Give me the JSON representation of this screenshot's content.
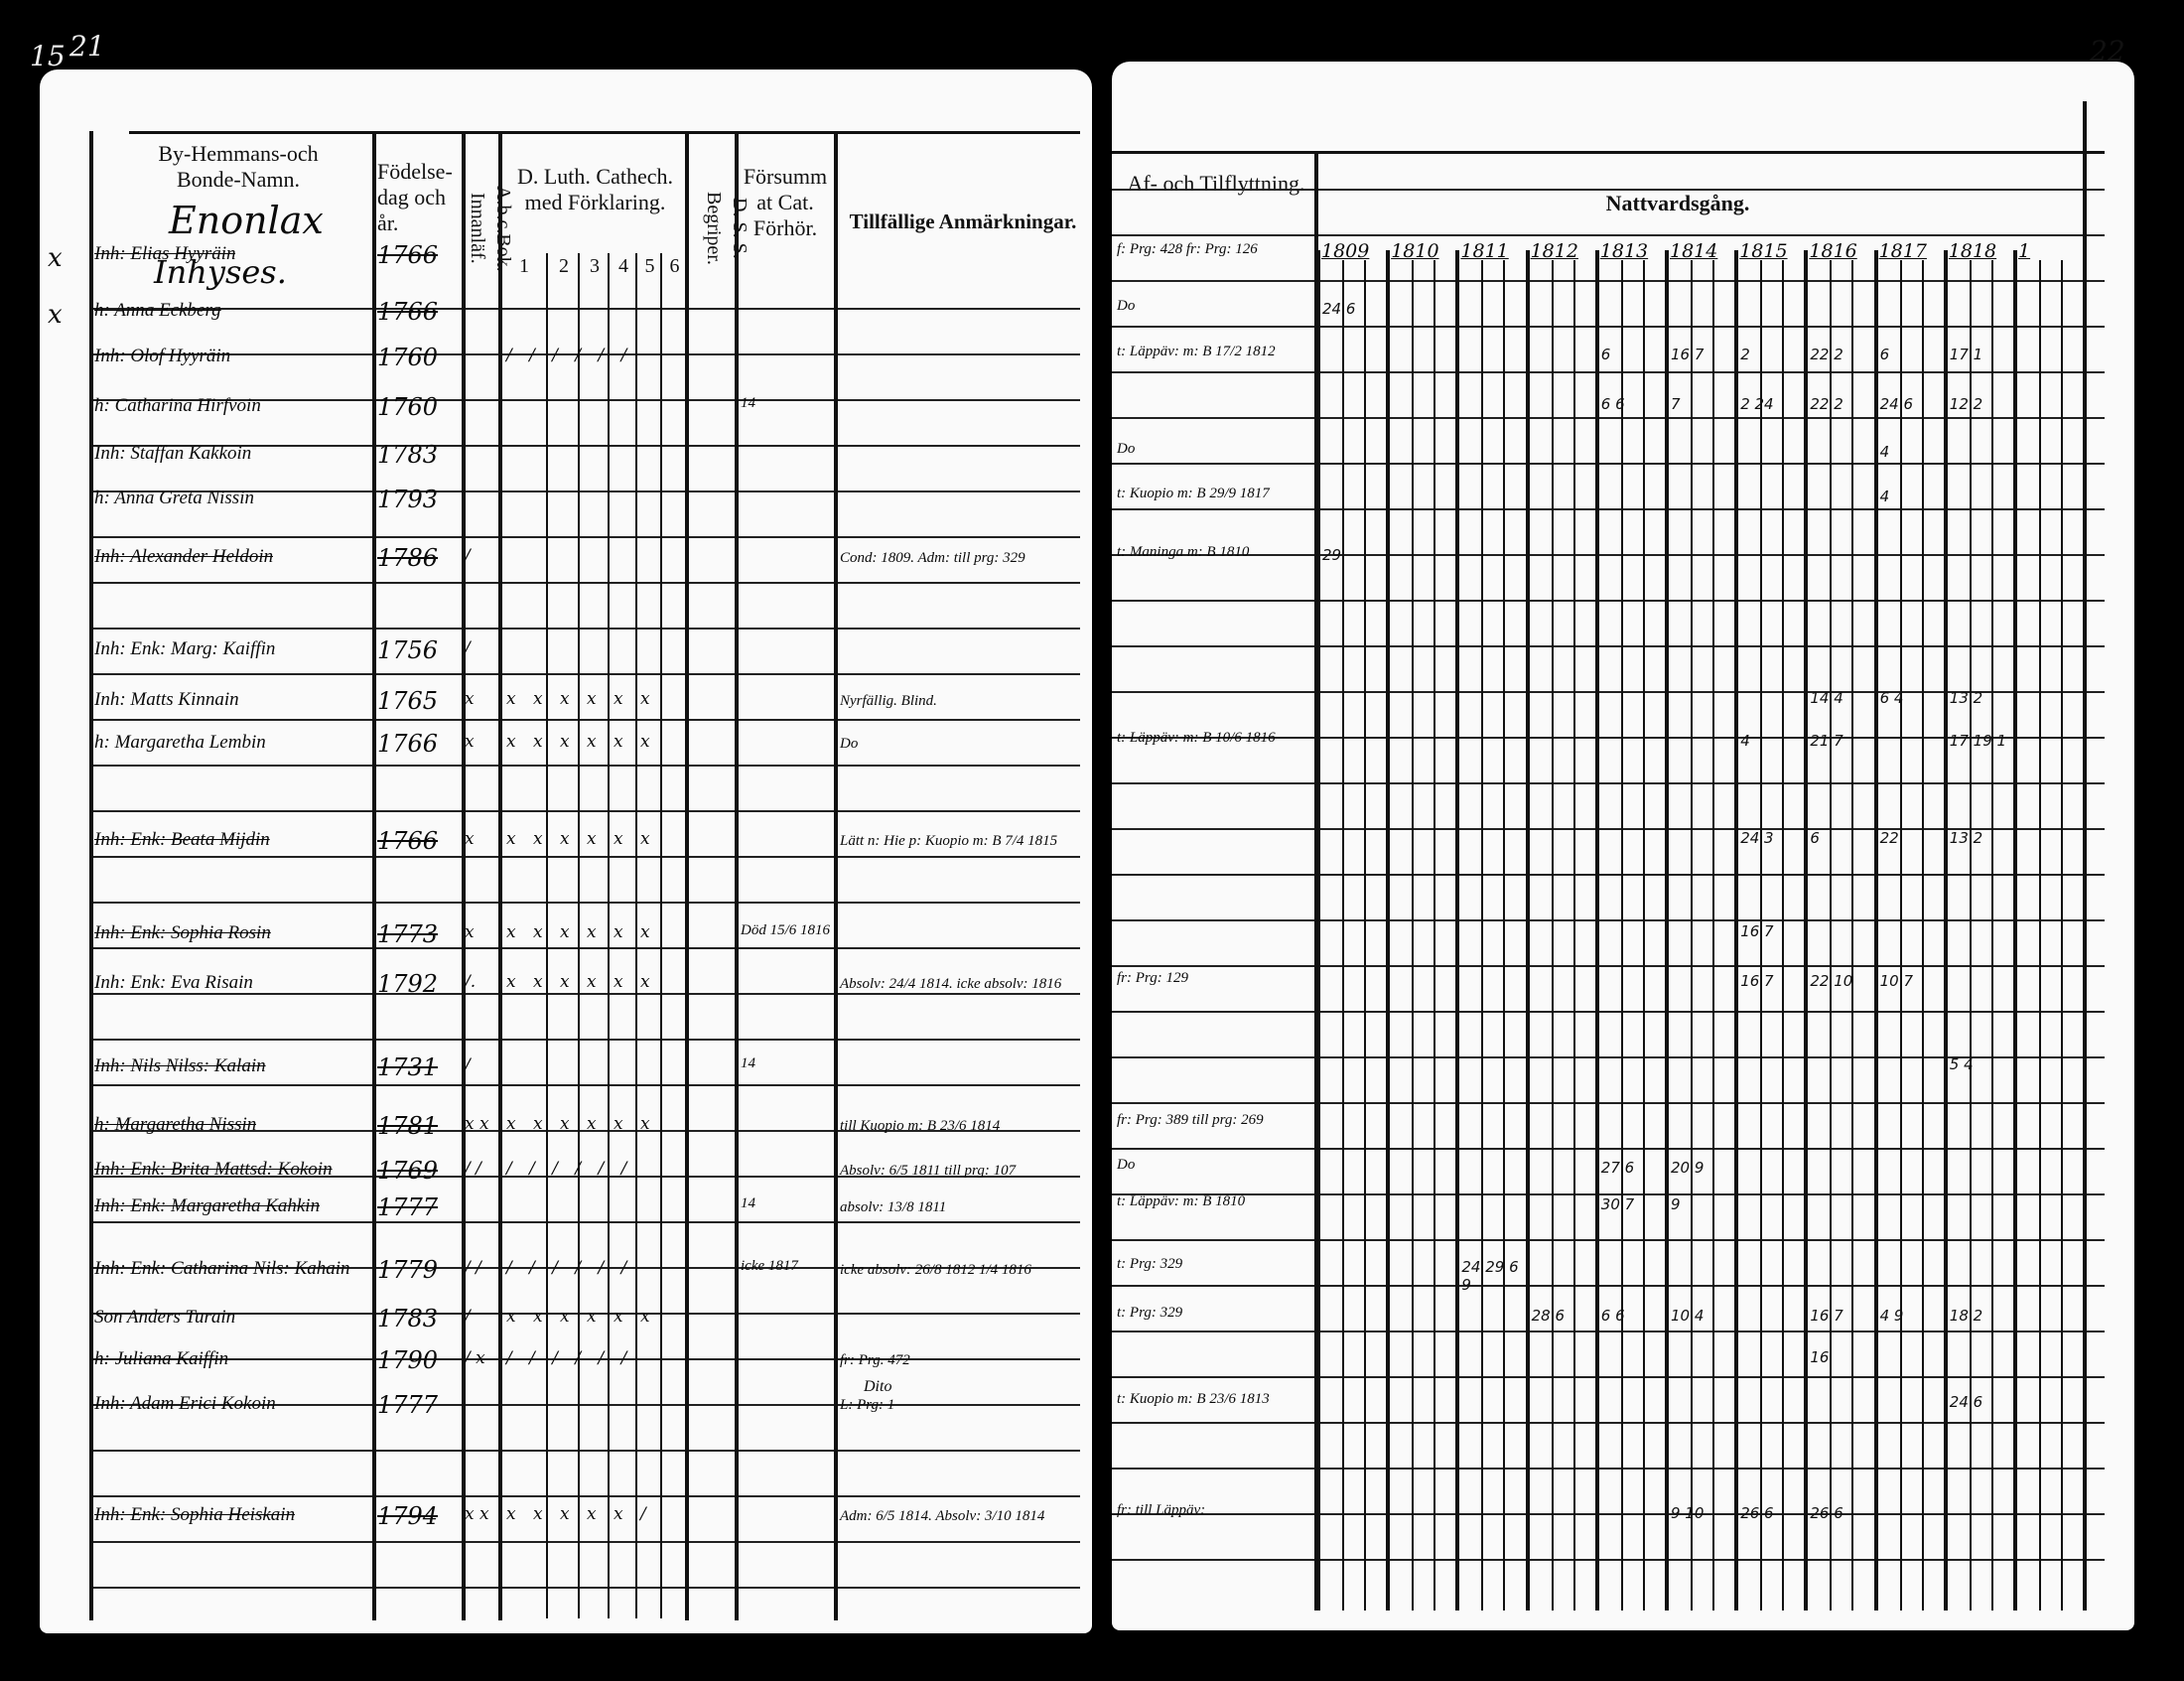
{
  "page_numbers": {
    "left_outer": "15",
    "left": "21",
    "right": "22"
  },
  "left_page": {
    "headers": {
      "name": "By-Hemmans-och Bonde-Namn.",
      "village": "Enonlax",
      "section": "Inhyses.",
      "birth": "Födelse-dag och år.",
      "abc": "A.b.c.Bok. Innanläf.",
      "catechism": "D. Luth. Cathech. med Förklaring.",
      "catechism_parts": [
        "1",
        "2",
        "3",
        "4",
        "5",
        "6"
      ],
      "dss": "D. S. S. Begriper.",
      "neglected": "Försummat Cat. Förhör.",
      "remarks": "Tillfällige Anmärkningar."
    },
    "rows": [
      {
        "name": "Inh: Elias Hyyräin",
        "year": "1766",
        "struck": true,
        "mark": "x",
        "abc": "",
        "cat": "",
        "dss": "",
        "remark": ""
      },
      {
        "name": "h: Anna Eckberg",
        "year": "1766",
        "struck": true,
        "mark": "x",
        "abc": "",
        "cat": "",
        "dss": "",
        "remark": ""
      },
      {
        "name": "Inh: Olof Hyyräin",
        "year": "1760",
        "struck": false,
        "mark": "",
        "abc": "",
        "cat": "/ / / / / /",
        "dss": "",
        "remark": ""
      },
      {
        "name": "h: Catharina Hirfvoin",
        "year": "1760",
        "struck": false,
        "mark": "",
        "abc": "",
        "cat": "",
        "dss": "14",
        "remark": ""
      },
      {
        "name": "Inh: Staffan Kakkoin",
        "year": "1783",
        "struck": false,
        "mark": "",
        "abc": "",
        "cat": "",
        "dss": "",
        "remark": ""
      },
      {
        "name": "h: Anna Greta Nissin",
        "year": "1793",
        "struck": false,
        "mark": "",
        "abc": "",
        "cat": "",
        "dss": "",
        "remark": ""
      },
      {
        "name": "Inh: Alexander Heldoin",
        "year": "1786",
        "struck": true,
        "mark": "",
        "abc": "/",
        "cat": "",
        "dss": "",
        "remark": "Cond: 1809. Adm: till prg: 329"
      },
      {
        "name": "Inh: Enk: Marg: Kaiffin",
        "year": "1756",
        "struck": false,
        "mark": "",
        "abc": "/",
        "cat": "",
        "dss": "",
        "remark": ""
      },
      {
        "name": "Inh: Matts Kinnain",
        "year": "1765",
        "struck": false,
        "mark": "",
        "abc": "x",
        "cat": "x x x x x x",
        "dss": "",
        "remark": "Nyrfällig. Blind."
      },
      {
        "name": "h: Margaretha Lembin",
        "year": "1766",
        "struck": false,
        "mark": "",
        "abc": "x",
        "cat": "x x x x x x",
        "dss": "",
        "remark": "Do"
      },
      {
        "name": "Inh: Enk: Beata Mijdin",
        "year": "1766",
        "struck": true,
        "mark": "",
        "abc": "x",
        "cat": "x x x x x x",
        "dss": "",
        "remark": "Lätt n: Hie p: Kuopio m: B 7/4 1815"
      },
      {
        "name": "Inh: Enk: Sophia Rosin",
        "year": "1773",
        "struck": true,
        "mark": "",
        "abc": "x",
        "cat": "x x x x x x",
        "dss": "Död 15/6 1816",
        "remark": ""
      },
      {
        "name": "Inh: Enk: Eva Risain",
        "year": "1792",
        "struck": false,
        "mark": "",
        "abc": "/.",
        "cat": "x x x x x x",
        "dss": "",
        "remark": "Absolv: 24/4 1814. icke absolv: 1816"
      },
      {
        "name": "Inh: Nils Nilss: Kalain",
        "year": "1731",
        "struck": true,
        "mark": "",
        "abc": "/",
        "cat": "",
        "dss": "14",
        "remark": ""
      },
      {
        "name": "h: Margaretha Nissin",
        "year": "1781",
        "struck": true,
        "mark": "",
        "abc": "x x",
        "cat": "x x x x x x",
        "dss": "",
        "remark": "till Kuopio m: B 23/6 1814"
      },
      {
        "name": "Inh: Enk: Brita Mattsd: Kokoin",
        "year": "1769",
        "struck": true,
        "mark": "",
        "abc": "/ /",
        "cat": "/ / / / / /",
        "dss": "",
        "remark": "Absolv: 6/5 1811 till prg: 107"
      },
      {
        "name": "Inh: Enk: Margaretha Kahkin",
        "year": "1777",
        "struck": true,
        "mark": "",
        "abc": "",
        "cat": "",
        "dss": "14",
        "remark": "absolv: 13/8 1811"
      },
      {
        "name": "Inh: Enk: Catharina Nils: Kahain",
        "year": "1779",
        "struck": false,
        "mark": "",
        "abc": "/ /",
        "cat": "/ / / / / /",
        "dss": "icke 1817",
        "remark": "icke absolv: 26/8 1812 1/4 1816"
      },
      {
        "name": "Son Anders Turain",
        "year": "1783",
        "struck": false,
        "mark": "",
        "abc": "/",
        "cat": "x x x x x x",
        "dss": "",
        "remark": ""
      },
      {
        "name": "h: Juliana Kaiffin",
        "year": "1790",
        "struck": false,
        "mark": "",
        "abc": "/ x",
        "cat": "/ / / / / /",
        "dss": "",
        "remark": "fr: Prg. 472"
      },
      {
        "name": "Inh: Adam Erici Kokoin",
        "year": "1777",
        "struck": false,
        "mark": "",
        "abc": "",
        "cat": "",
        "dss": "",
        "remark": "L: Prg: 1"
      },
      {
        "name": "Inh: Enk: Sophia Heiskain",
        "year": "1794",
        "struck": true,
        "mark": "",
        "abc": "x x",
        "cat": "x x x x x /",
        "dss": "",
        "remark": "Adm: 6/5 1814. Absolv: 3/10 1814"
      }
    ],
    "extra_remark": "Dito"
  },
  "right_page": {
    "headers": {
      "moves": "Af- och Tilflyttning.",
      "communion": "Nattvardsgång."
    },
    "years": [
      "1809",
      "1810",
      "1811",
      "1812",
      "1813",
      "1814",
      "1815",
      "1816",
      "1817",
      "1818",
      "1"
    ],
    "moves": [
      "f: Prg: 428 fr: Prg: 126",
      "Do",
      "t: Läppäv: m: B 17/2 1812",
      "",
      "Do",
      "t: Kuopio m: B 29/9 1817",
      "t: Maninga m: B 1810",
      "",
      "",
      "t: Läppäv: m: B 10/6 1816",
      "",
      "",
      "fr: Prg: 129",
      "",
      "fr: Prg: 389 till prg: 269",
      "Do",
      "t: Läppäv: m: B 1810",
      "t: Prg: 329",
      "t: Prg: 329",
      "",
      "t: Kuopio m: B 23/6 1813",
      "fr: till Läppäv:"
    ],
    "communion": [
      [],
      [
        [
          "1809",
          "24 6"
        ]
      ],
      [
        [
          "1813",
          "6"
        ],
        [
          "1814",
          "16 7"
        ],
        [
          "1815",
          "2"
        ],
        [
          "1816",
          "22 2"
        ],
        [
          "1817",
          "6"
        ],
        [
          "1818",
          "17 1"
        ]
      ],
      [
        [
          "1813",
          "6 6"
        ],
        [
          "1814",
          "7"
        ],
        [
          "1815",
          "2 24"
        ],
        [
          "1816",
          "22 2"
        ],
        [
          "1817",
          "24 6"
        ],
        [
          "1818",
          "12 2"
        ]
      ],
      [
        [
          "1817",
          "4"
        ]
      ],
      [
        [
          "1817",
          "4"
        ]
      ],
      [
        [
          "1809",
          "29"
        ]
      ],
      [],
      [
        [
          "1816",
          "14 4"
        ],
        [
          "1817",
          "6 4"
        ],
        [
          "1818",
          "13 2"
        ]
      ],
      [
        [
          "1815",
          "4"
        ],
        [
          "1816",
          "21 7"
        ],
        [
          "1818",
          "17 19 1"
        ]
      ],
      [
        [
          "1815",
          "24 3"
        ],
        [
          "1816",
          "6"
        ],
        [
          "1817",
          "22"
        ],
        [
          "1818",
          "13 2"
        ]
      ],
      [
        [
          "1815",
          "16 7"
        ]
      ],
      [
        [
          "1815",
          "16 7"
        ],
        [
          "1816",
          "22 10"
        ],
        [
          "1817",
          "10 7"
        ]
      ],
      [
        [
          "1818",
          "5 4"
        ]
      ],
      [],
      [
        [
          "1813",
          "27 6"
        ],
        [
          "1814",
          "20 9"
        ]
      ],
      [
        [
          "1813",
          "30 7"
        ],
        [
          "1814",
          "9"
        ]
      ],
      [
        [
          "1811",
          "24 29 6 9"
        ]
      ],
      [
        [
          "1812",
          "28 6"
        ],
        [
          "1813",
          "6 6"
        ],
        [
          "1814",
          "10 4"
        ],
        [
          "1816",
          "16 7"
        ],
        [
          "1817",
          "4 9"
        ],
        [
          "1818",
          "18 2"
        ]
      ],
      [
        [
          "1816",
          "16"
        ]
      ],
      [
        [
          "1818",
          "24 6"
        ]
      ],
      [
        [
          "1814",
          "9 10"
        ],
        [
          "1815",
          "26 6"
        ],
        [
          "1816",
          "26 6"
        ]
      ]
    ]
  }
}
